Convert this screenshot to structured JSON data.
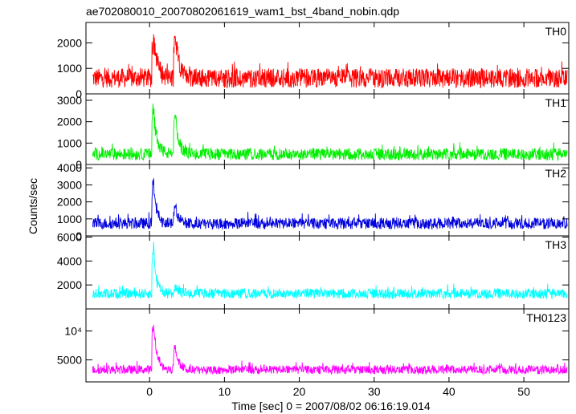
{
  "title": "ae702080010_20070802061619_wam1_bst_4band_nobin.qdp",
  "xlabel": "Time [sec] 0 = 2007/08/02 06:16:19.014",
  "ylabel": "Counts/sec",
  "chart_data": {
    "type": "line",
    "x_range": [
      -8.5,
      56
    ],
    "x_ticks": [
      0,
      10,
      20,
      30,
      40,
      50
    ],
    "x_tick_labels": [
      "0",
      "10",
      "20",
      "30",
      "40",
      "50"
    ],
    "grid": false,
    "panels": [
      {
        "name": "TH0",
        "color": "#ff0000",
        "ylim": [
          0,
          2800
        ],
        "y_ticks": [
          0,
          1000,
          2000
        ],
        "y_tick_labels": [
          "0",
          "1000",
          "2000"
        ],
        "baseline": 620,
        "noise": 380,
        "peaks": [
          {
            "t": 0.5,
            "height": 2800,
            "decay": 0.5
          },
          {
            "t": 3.4,
            "height": 2650,
            "decay": 0.5
          }
        ]
      },
      {
        "name": "TH1",
        "color": "#00ee00",
        "ylim": [
          0,
          3300
        ],
        "y_ticks": [
          0,
          1000,
          2000,
          3000
        ],
        "y_tick_labels": [
          "0",
          "1000",
          "2000",
          "3000"
        ],
        "baseline": 480,
        "noise": 280,
        "peaks": [
          {
            "t": 0.5,
            "height": 3200,
            "decay": 0.5
          },
          {
            "t": 3.4,
            "height": 2500,
            "decay": 0.5
          }
        ]
      },
      {
        "name": "TH2",
        "color": "#0000dd",
        "ylim": [
          0,
          4200
        ],
        "y_ticks": [
          0,
          1000,
          2000,
          3000,
          4000
        ],
        "y_tick_labels": [
          "0",
          "1000",
          "2000",
          "3000",
          "4000"
        ],
        "baseline": 730,
        "noise": 330,
        "peaks": [
          {
            "t": 0.5,
            "height": 3900,
            "decay": 0.4
          },
          {
            "t": 3.4,
            "height": 1950,
            "decay": 0.5
          }
        ]
      },
      {
        "name": "TH3",
        "color": "#00ffff",
        "ylim": [
          0,
          6100
        ],
        "y_ticks": [
          2000,
          4000,
          6000
        ],
        "y_tick_labels": [
          "2000",
          "4000",
          "6000"
        ],
        "baseline": 1280,
        "noise": 420,
        "peaks": [
          {
            "t": 0.5,
            "height": 6000,
            "decay": 0.4
          },
          {
            "t": 3.4,
            "height": 1900,
            "decay": 0.5
          }
        ]
      },
      {
        "name": "TH0123",
        "color": "#ff00ff",
        "ylim": [
          1200,
          13800
        ],
        "y_ticks": [
          5000,
          10000
        ],
        "y_tick_labels": [
          "5000",
          "10⁴"
        ],
        "baseline": 3300,
        "noise": 750,
        "peaks": [
          {
            "t": 0.5,
            "height": 13500,
            "decay": 0.45
          },
          {
            "t": 3.4,
            "height": 8200,
            "decay": 0.5
          }
        ]
      }
    ]
  }
}
